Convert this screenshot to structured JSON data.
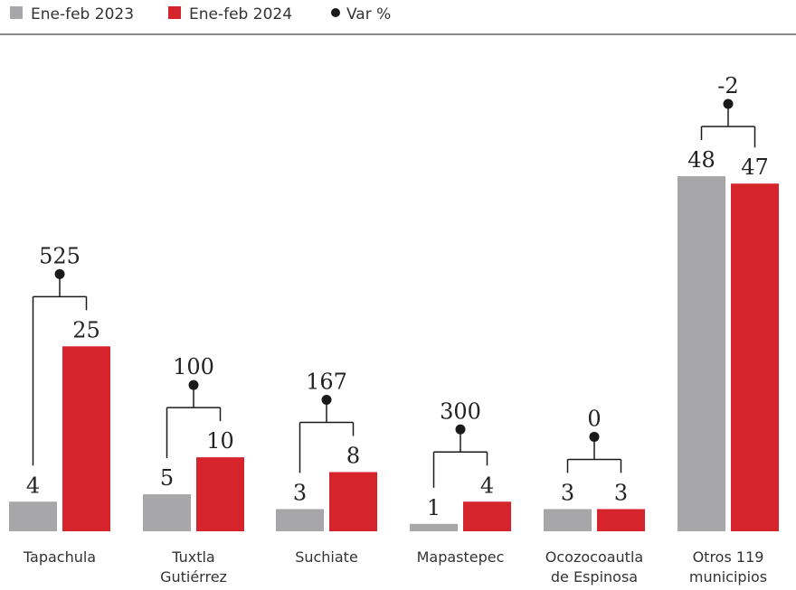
{
  "chart_data": {
    "type": "bar",
    "title": "",
    "xlabel": "",
    "ylabel": "",
    "ylim": [
      0,
      48
    ],
    "grid": false,
    "legend_position": "top-left",
    "categories": [
      [
        "Tapachula"
      ],
      [
        "Tuxtla",
        "Gutiérrez"
      ],
      [
        "Suchiate"
      ],
      [
        "Mapastepec"
      ],
      [
        "Ocozocoautla",
        "de Espinosa"
      ],
      [
        "Otros 119",
        "municipios"
      ]
    ],
    "series": [
      {
        "name": "Ene-feb 2023",
        "color": "#a7a7a9",
        "values": [
          4,
          5,
          3,
          1,
          3,
          48
        ]
      },
      {
        "name": "Ene-feb 2024",
        "color": "#d5242b",
        "values": [
          25,
          10,
          8,
          4,
          3,
          47
        ]
      }
    ],
    "variation": {
      "name": "Var %",
      "color": "#1a1a1a",
      "values": [
        "525",
        "100",
        "167",
        "300",
        "0",
        "-2"
      ]
    }
  }
}
